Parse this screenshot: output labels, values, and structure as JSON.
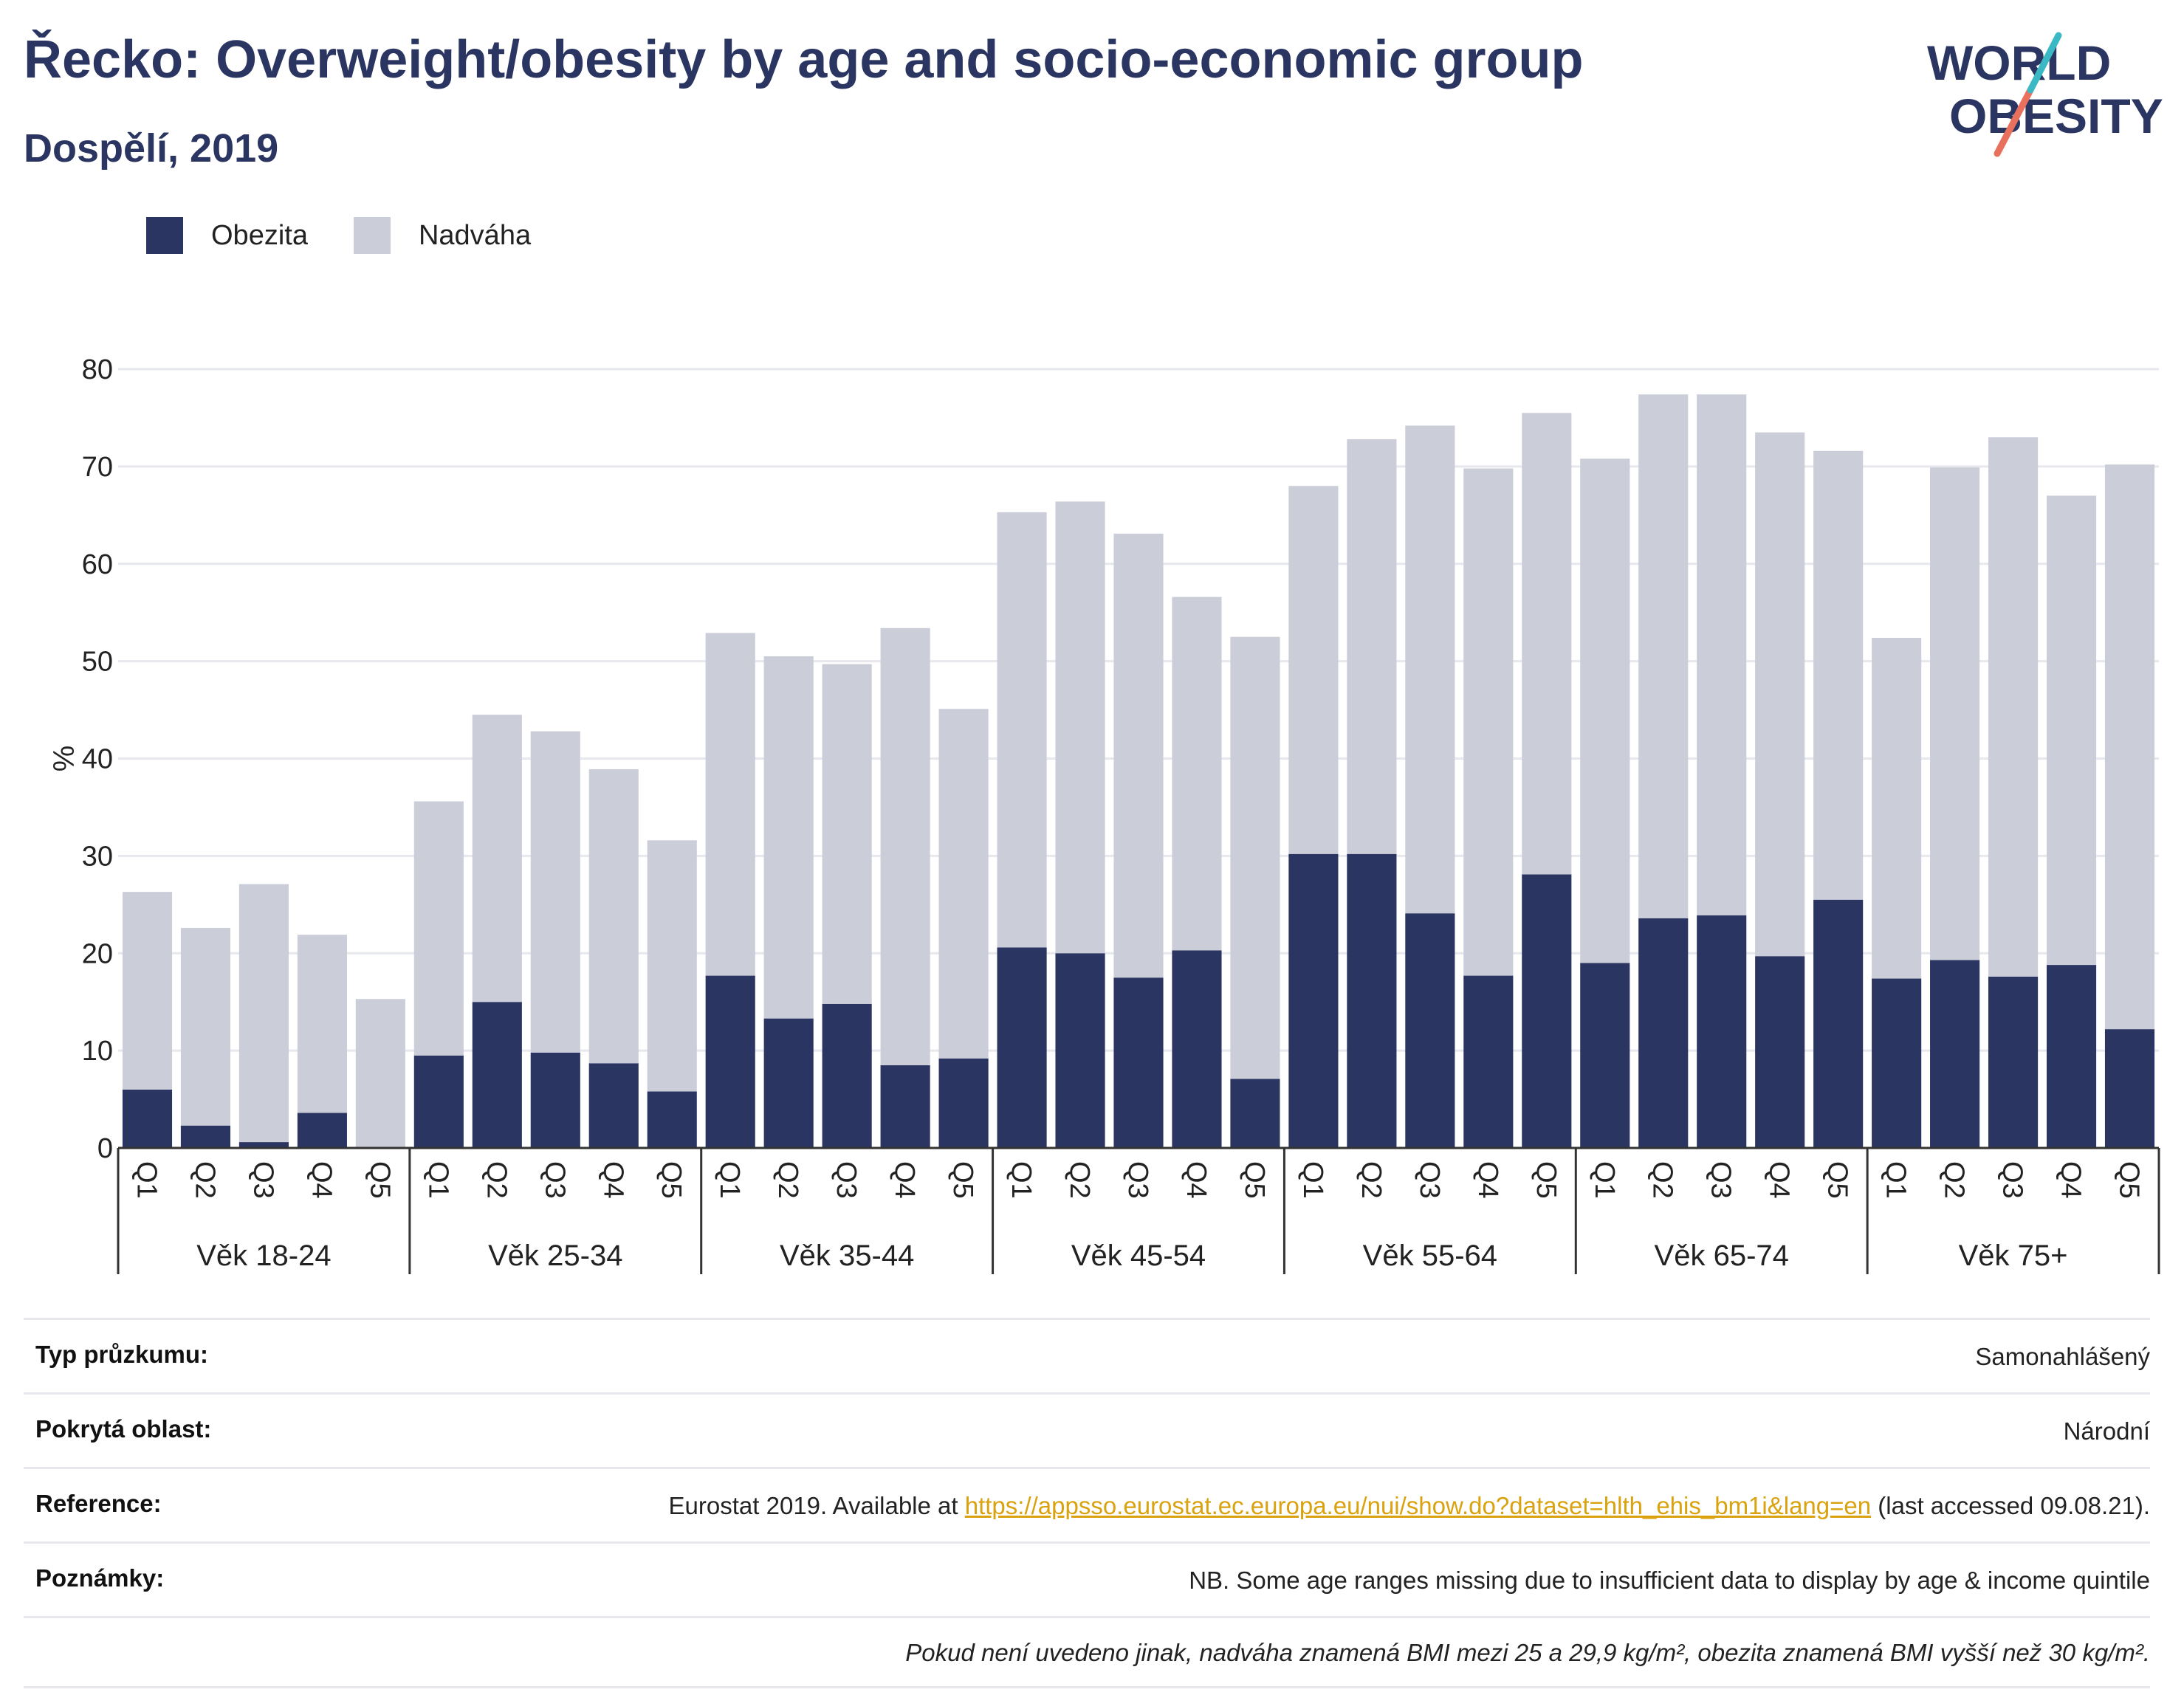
{
  "header": {
    "title": "Řecko: Overweight/obesity by age and socio-economic group",
    "subtitle": "Dospělí, 2019"
  },
  "logo": {
    "line1": "WORLD",
    "line2": "OBESITY"
  },
  "colors": {
    "obesity": "#2b3562",
    "overweight": "#cbcdd9",
    "text_dark": "#2b3562",
    "logo_teal": "#3ab8c3",
    "logo_coral": "#e8705c",
    "link": "#d9a20e"
  },
  "legend": [
    {
      "label": "Obezita",
      "color": "#2b3562"
    },
    {
      "label": "Nadváha",
      "color": "#cbcdd9"
    }
  ],
  "chart_data": {
    "type": "bar",
    "stacked": true,
    "ylabel": "%",
    "ylim": [
      0,
      80
    ],
    "yticks": [
      0,
      10,
      20,
      30,
      40,
      50,
      60,
      70,
      80
    ],
    "grid": true,
    "legend_position": "top-left",
    "groups": [
      "Věk 18-24",
      "Věk 25-34",
      "Věk 35-44",
      "Věk 45-54",
      "Věk 55-64",
      "Věk 65-74",
      "Věk 75+"
    ],
    "quintiles": [
      "Q1",
      "Q2",
      "Q3",
      "Q4",
      "Q5"
    ],
    "series": [
      {
        "name": "Obezita",
        "values": [
          [
            6.0,
            2.3,
            0.6,
            3.6,
            0.0
          ],
          [
            9.5,
            15.0,
            9.8,
            8.7,
            5.8
          ],
          [
            17.7,
            13.3,
            14.8,
            8.5,
            9.2
          ],
          [
            20.6,
            20.0,
            17.5,
            20.3,
            7.1
          ],
          [
            30.2,
            30.2,
            24.1,
            17.7,
            28.1
          ],
          [
            19.0,
            23.6,
            23.9,
            19.7,
            25.5
          ],
          [
            17.4,
            19.3,
            17.6,
            18.8,
            12.2
          ]
        ]
      },
      {
        "name": "Nadváha",
        "values": [
          [
            20.3,
            20.3,
            26.5,
            18.3,
            15.3
          ],
          [
            26.1,
            29.5,
            33.0,
            30.2,
            25.8
          ],
          [
            35.2,
            37.2,
            34.9,
            44.9,
            35.9
          ],
          [
            44.7,
            46.4,
            45.6,
            36.3,
            45.4
          ],
          [
            37.8,
            42.6,
            50.1,
            52.1,
            47.4
          ],
          [
            51.8,
            53.8,
            53.5,
            53.8,
            46.1
          ],
          [
            35.0,
            50.6,
            55.4,
            48.2,
            58.0
          ]
        ]
      }
    ]
  },
  "meta": {
    "survey_type_label": "Typ průzkumu:",
    "survey_type_value": "Samonahlášený",
    "coverage_label": "Pokrytá oblast:",
    "coverage_value": "Národní",
    "reference_label": "Reference:",
    "reference_prefix": "Eurostat 2019. Available at ",
    "reference_link": "https://appsso.eurostat.ec.europa.eu/nui/show.do?dataset=hlth_ehis_bm1i&lang=en",
    "reference_suffix": " (last accessed 09.08.21).",
    "notes_label": "Poznámky:",
    "notes_value": "NB. Some age ranges missing due to insufficient data to display by age & income quintile",
    "footnote": "Pokud není uvedeno jinak, nadváha znamená BMI mezi 25 a 29,9 kg/m², obezita znamená BMI vyšší než 30 kg/m²."
  }
}
